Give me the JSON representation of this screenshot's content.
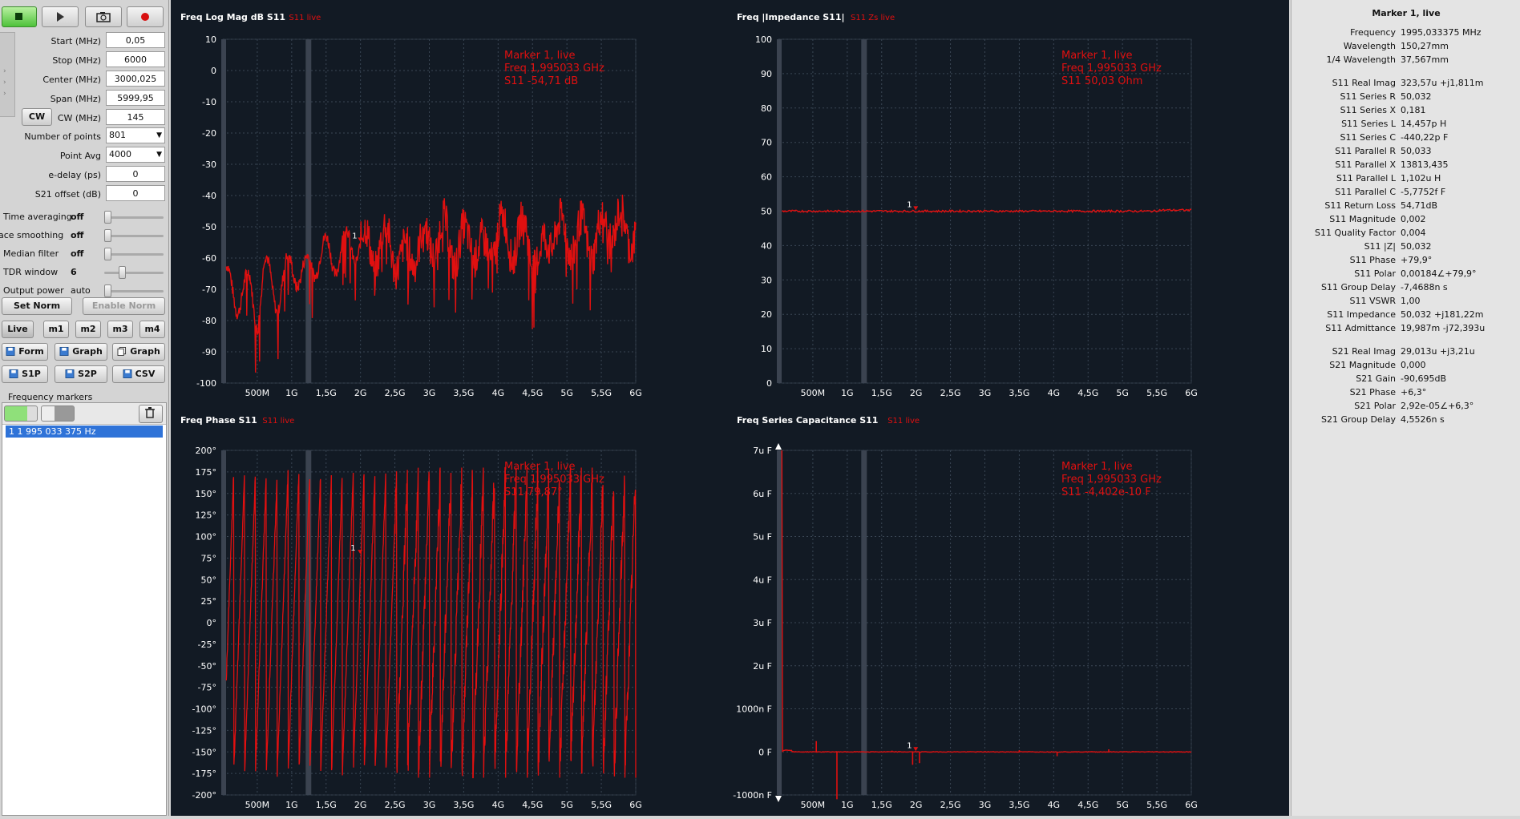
{
  "controls": {
    "fields": [
      {
        "label": "Start (MHz)",
        "value": "0,05"
      },
      {
        "label": "Stop (MHz)",
        "value": "6000"
      },
      {
        "label": "Center (MHz)",
        "value": "3000,025"
      },
      {
        "label": "Span (MHz)",
        "value": "5999,95"
      },
      {
        "label": "CW (MHz)",
        "value": "145"
      }
    ],
    "cw_button": "CW",
    "points_label": "Number of points",
    "points_value": "801",
    "avg_label": "Point Avg",
    "avg_value": "4000",
    "edelay_label": "e-delay (ps)",
    "edelay_value": "0",
    "s21_label": "S21 offset (dB)",
    "s21_value": "0",
    "sliders": [
      {
        "label": "Time averaging",
        "value": "off",
        "level": 0
      },
      {
        "label": "ace smoothing",
        "value": "off",
        "level": 0
      },
      {
        "label": "Median filter",
        "value": "off",
        "level": 0
      },
      {
        "label": "TDR window",
        "value": "6",
        "level": 0.28
      },
      {
        "label": "Output power",
        "value": "auto",
        "level": 0
      }
    ],
    "set_norm": "Set Norm",
    "enable_norm": "Enable Norm",
    "mem_buttons": [
      "Live",
      "m1",
      "m2",
      "m3",
      "m4"
    ],
    "form_btn": "Form",
    "graph_btn": "Graph",
    "graph_btn2": "Graph",
    "s1p_btn": "S1P",
    "s2p_btn": "S2P",
    "csv_btn": "CSV",
    "freq_markers_label": "Frequency markers",
    "marker_item": "1  1 995 033 375 Hz"
  },
  "charts": [
    {
      "title": "Freq Log Mag dB S11",
      "live": "S11 live",
      "marker": [
        "Marker 1, live",
        "Freq    1,995033 GHz",
        "S11     -54,71 dB"
      ],
      "y_ticks": [
        "10",
        "0",
        "-10",
        "-20",
        "-30",
        "-40",
        "-50",
        "-60",
        "-70",
        "-80",
        "-90",
        "-100"
      ]
    },
    {
      "title": "Freq |Impedance S11|",
      "live": "S11 Zs live",
      "marker": [
        "Marker 1, live",
        "Freq    1,995033 GHz",
        "S11     50,03 Ohm"
      ],
      "y_ticks": [
        "100",
        "90",
        "80",
        "70",
        "60",
        "50",
        "40",
        "30",
        "20",
        "10",
        "0"
      ]
    },
    {
      "title": "Freq Phase S11",
      "live": "S11 live",
      "marker": [
        "Marker 1, live",
        "Freq    1,995033 GHz",
        "S11     79,87°"
      ],
      "y_ticks": [
        "200°",
        "175°",
        "150°",
        "125°",
        "100°",
        "75°",
        "50°",
        "25°",
        "0°",
        "-25°",
        "-50°",
        "-75°",
        "-100°",
        "-125°",
        "-150°",
        "-175°",
        "-200°"
      ]
    },
    {
      "title": "Freq Series Capacitance S11",
      "live": "S11 live",
      "marker": [
        "Marker 1, live",
        "Freq    1,995033 GHz",
        "S11     -4,402e-10 F"
      ],
      "y_ticks": [
        "7u F",
        "6u F",
        "5u F",
        "4u F",
        "3u F",
        "2u F",
        "1000n F",
        "0 F",
        "-1000n F"
      ]
    }
  ],
  "x_ticks": [
    "500M",
    "1G",
    "1,5G",
    "2G",
    "2,5G",
    "3G",
    "3,5G",
    "4G",
    "4,5G",
    "5G",
    "5,5G",
    "6G"
  ],
  "marker_num": "1",
  "readout": {
    "title": "Marker 1, live",
    "group1": [
      {
        "label": "Frequency",
        "value": "1995,033375 MHz"
      },
      {
        "label": "Wavelength",
        "value": "150,27mm"
      },
      {
        "label": "1/4 Wavelength",
        "value": "37,567mm"
      }
    ],
    "group2": [
      {
        "label": "S11 Real Imag",
        "value": "323,57u +j1,811m"
      },
      {
        "label": "S11 Series R",
        "value": "50,032"
      },
      {
        "label": "S11 Series X",
        "value": "0,181"
      },
      {
        "label": "S11 Series L",
        "value": "14,457p H"
      },
      {
        "label": "S11 Series C",
        "value": "-440,22p F"
      },
      {
        "label": "S11 Parallel R",
        "value": "50,033"
      },
      {
        "label": "S11 Parallel X",
        "value": "13813,435"
      },
      {
        "label": "S11 Parallel L",
        "value": "1,102u H"
      },
      {
        "label": "S11 Parallel C",
        "value": "-5,7752f F"
      },
      {
        "label": "S11 Return Loss",
        "value": "54,71dB"
      },
      {
        "label": "S11 Magnitude",
        "value": "0,002"
      },
      {
        "label": "S11 Quality Factor",
        "value": "0,004"
      },
      {
        "label": "S11 |Z|",
        "value": "50,032"
      },
      {
        "label": "S11 Phase",
        "value": "+79,9°"
      },
      {
        "label": "S11 Polar",
        "value": "0,00184∠+79,9°"
      },
      {
        "label": "S11 Group Delay",
        "value": "-7,4688n s"
      },
      {
        "label": "S11 VSWR",
        "value": "1,00"
      },
      {
        "label": "S11 Impedance",
        "value": "50,032 +j181,22m"
      },
      {
        "label": "S11 Admittance",
        "value": "19,987m -j72,393u"
      }
    ],
    "group3": [
      {
        "label": "S21 Real Imag",
        "value": "29,013u +j3,21u"
      },
      {
        "label": "S21 Magnitude",
        "value": "0,000"
      },
      {
        "label": "S21 Gain",
        "value": "-90,695dB"
      },
      {
        "label": "S21 Phase",
        "value": "+6,3°"
      },
      {
        "label": "S21 Polar",
        "value": "2,92e-05∠+6,3°"
      },
      {
        "label": "S21 Group Delay",
        "value": "4,5526n s"
      }
    ]
  },
  "colors": {
    "trace": "#e01010",
    "plot_bg": "#121a24",
    "grid": "#3a4654"
  },
  "chart_data": [
    {
      "type": "line",
      "title": "Freq Log Mag dB S11",
      "xlim": [
        0,
        6
      ],
      "ylim": [
        -100,
        10
      ],
      "series": [
        {
          "name": "S11 live",
          "x": [
            0.05,
            0.2,
            0.4,
            0.5,
            0.6,
            0.8,
            1.0,
            1.2,
            1.4,
            1.6,
            1.8,
            2.0,
            2.2,
            2.4,
            2.6,
            2.8,
            3.0,
            3.2,
            3.4,
            3.6,
            3.8,
            4.0,
            4.2,
            4.4,
            4.6,
            4.8,
            5.0,
            5.2,
            5.4,
            5.6,
            5.8,
            6.0
          ],
          "y": [
            -68,
            -72,
            -70,
            -78,
            -64,
            -72,
            -62,
            -66,
            -58,
            -60,
            -56,
            -55,
            -58,
            -54,
            -62,
            -56,
            -55,
            -52,
            -58,
            -53,
            -60,
            -51,
            -55,
            -52,
            -62,
            -50,
            -54,
            -53,
            -55,
            -49,
            -50,
            -52
          ]
        }
      ]
    },
    {
      "type": "line",
      "title": "Freq |Impedance S11|",
      "xlim": [
        0,
        6
      ],
      "ylim": [
        0,
        100
      ],
      "series": [
        {
          "name": "S11 Zs live",
          "x": [
            0.05,
            1,
            2,
            3,
            4,
            5,
            6
          ],
          "y": [
            50,
            50,
            50.03,
            50,
            50,
            50.1,
            50.2
          ]
        }
      ]
    },
    {
      "type": "line",
      "title": "Freq Phase S11",
      "xlim": [
        0,
        6
      ],
      "ylim": [
        -200,
        200
      ],
      "series": [
        {
          "name": "S11 live",
          "phase_wraps": 38,
          "x_marker": 1.995,
          "y_marker": 79.87
        }
      ]
    },
    {
      "type": "line",
      "title": "Freq Series Capacitance S11",
      "xlim": [
        0,
        6
      ],
      "ylim": [
        -1e-06,
        7e-06
      ],
      "series": [
        {
          "name": "S11 live",
          "x": [
            0.05,
            0.07,
            0.1,
            0.3,
            0.6,
            0.85,
            1.0,
            2.0,
            3.0,
            4.0,
            5.0,
            6.0
          ],
          "y": [
            7e-06,
            1e-07,
            2e-08,
            0,
            5e-08,
            -1e-06,
            0,
            -4.402e-10,
            0,
            -5e-08,
            0,
            0
          ]
        }
      ]
    }
  ]
}
